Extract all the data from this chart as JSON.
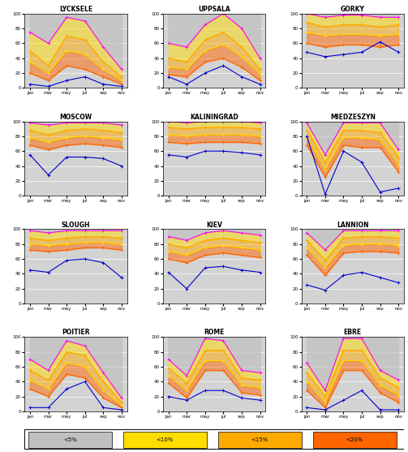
{
  "stations": [
    "LYCKSELE",
    "UPPSALA",
    "GORKY",
    "MOSCOW",
    "KALININGRAD",
    "MIEDZESZYN",
    "SLOUGH",
    "KIEV",
    "LANNION",
    "POITIER",
    "ROME",
    "EBRE"
  ],
  "months": [
    "jan",
    "mar",
    "may",
    "jul",
    "sep",
    "nov"
  ],
  "series_colors": [
    "#ff00ff",
    "#ffaa00",
    "#ffdd00",
    "#ff6600",
    "#0000cc"
  ],
  "series_data": {
    "LYCKSELE": {
      "s1": [
        75,
        60,
        95,
        90,
        55,
        25
      ],
      "s2": [
        50,
        30,
        70,
        65,
        35,
        15
      ],
      "s3": [
        35,
        20,
        50,
        45,
        25,
        10
      ],
      "s4": [
        20,
        10,
        30,
        25,
        15,
        5
      ],
      "s5": [
        5,
        2,
        10,
        15,
        5,
        2
      ]
    },
    "UPPSALA": {
      "s1": [
        60,
        55,
        85,
        100,
        80,
        40
      ],
      "s2": [
        40,
        35,
        65,
        75,
        55,
        25
      ],
      "s3": [
        28,
        25,
        50,
        58,
        42,
        18
      ],
      "s4": [
        18,
        15,
        35,
        40,
        28,
        10
      ],
      "s5": [
        15,
        5,
        20,
        30,
        15,
        5
      ]
    },
    "GORKY": {
      "s1": [
        100,
        95,
        98,
        98,
        95,
        95
      ],
      "s2": [
        88,
        82,
        85,
        85,
        82,
        85
      ],
      "s3": [
        75,
        70,
        72,
        72,
        70,
        72
      ],
      "s4": [
        60,
        55,
        58,
        58,
        55,
        58
      ],
      "s5": [
        48,
        42,
        45,
        48,
        62,
        48
      ]
    },
    "MOSCOW": {
      "s1": [
        98,
        95,
        98,
        98,
        98,
        95
      ],
      "s2": [
        88,
        82,
        88,
        90,
        88,
        85
      ],
      "s3": [
        78,
        72,
        78,
        80,
        78,
        75
      ],
      "s4": [
        68,
        62,
        68,
        70,
        68,
        65
      ],
      "s5": [
        55,
        28,
        52,
        52,
        50,
        40
      ]
    },
    "KALININGRAD": {
      "s1": [
        100,
        98,
        100,
        100,
        100,
        98
      ],
      "s2": [
        92,
        90,
        92,
        92,
        92,
        90
      ],
      "s3": [
        82,
        80,
        82,
        82,
        82,
        80
      ],
      "s4": [
        72,
        70,
        72,
        72,
        72,
        70
      ],
      "s5": [
        55,
        52,
        60,
        60,
        58,
        55
      ]
    },
    "MIEDZESZYN": {
      "s1": [
        98,
        55,
        98,
        98,
        98,
        62
      ],
      "s2": [
        88,
        45,
        88,
        88,
        85,
        52
      ],
      "s3": [
        78,
        35,
        78,
        78,
        75,
        42
      ],
      "s4": [
        68,
        25,
        68,
        65,
        65,
        32
      ],
      "s5": [
        80,
        2,
        60,
        45,
        5,
        10
      ]
    },
    "SLOUGH": {
      "s1": [
        98,
        95,
        98,
        98,
        98,
        98
      ],
      "s2": [
        88,
        85,
        88,
        90,
        90,
        88
      ],
      "s3": [
        80,
        78,
        80,
        82,
        82,
        80
      ],
      "s4": [
        72,
        70,
        72,
        75,
        75,
        72
      ],
      "s5": [
        45,
        42,
        58,
        60,
        55,
        35
      ]
    },
    "KIEV": {
      "s1": [
        90,
        85,
        95,
        98,
        95,
        92
      ],
      "s2": [
        80,
        75,
        85,
        88,
        85,
        82
      ],
      "s3": [
        70,
        65,
        75,
        78,
        75,
        72
      ],
      "s4": [
        60,
        55,
        65,
        68,
        65,
        62
      ],
      "s5": [
        42,
        20,
        48,
        50,
        45,
        42
      ]
    },
    "LANNION": {
      "s1": [
        95,
        72,
        98,
        98,
        98,
        98
      ],
      "s2": [
        85,
        58,
        88,
        90,
        90,
        88
      ],
      "s3": [
        75,
        48,
        78,
        80,
        80,
        78
      ],
      "s4": [
        65,
        38,
        68,
        70,
        70,
        68
      ],
      "s5": [
        25,
        18,
        38,
        42,
        35,
        28
      ]
    },
    "POITIER": {
      "s1": [
        70,
        55,
        95,
        88,
        52,
        18
      ],
      "s2": [
        55,
        42,
        80,
        75,
        40,
        12
      ],
      "s3": [
        42,
        30,
        65,
        60,
        28,
        8
      ],
      "s4": [
        30,
        20,
        50,
        45,
        18,
        5
      ],
      "s5": [
        5,
        5,
        30,
        40,
        5,
        2
      ]
    },
    "ROME": {
      "s1": [
        70,
        48,
        98,
        95,
        55,
        52
      ],
      "s2": [
        58,
        38,
        82,
        82,
        45,
        42
      ],
      "s3": [
        48,
        28,
        68,
        68,
        35,
        32
      ],
      "s4": [
        38,
        18,
        55,
        55,
        25,
        22
      ],
      "s5": [
        20,
        15,
        28,
        28,
        18,
        15
      ]
    },
    "EBRE": {
      "s1": [
        65,
        28,
        98,
        98,
        55,
        42
      ],
      "s2": [
        52,
        20,
        82,
        82,
        45,
        32
      ],
      "s3": [
        40,
        12,
        68,
        68,
        35,
        22
      ],
      "s4": [
        28,
        5,
        55,
        55,
        25,
        12
      ],
      "s5": [
        5,
        2,
        15,
        28,
        2,
        2
      ]
    }
  },
  "legend_labels": [
    "<5%",
    "<10%",
    "<15%",
    "<20%"
  ],
  "legend_colors": [
    "#c0c0c0",
    "#ffdd00",
    "#ffaa00",
    "#ff6600"
  ],
  "bg_color": "#d3d3d3",
  "ylim": [
    0,
    100
  ],
  "yticks": [
    0,
    20,
    40,
    60,
    80,
    100
  ]
}
